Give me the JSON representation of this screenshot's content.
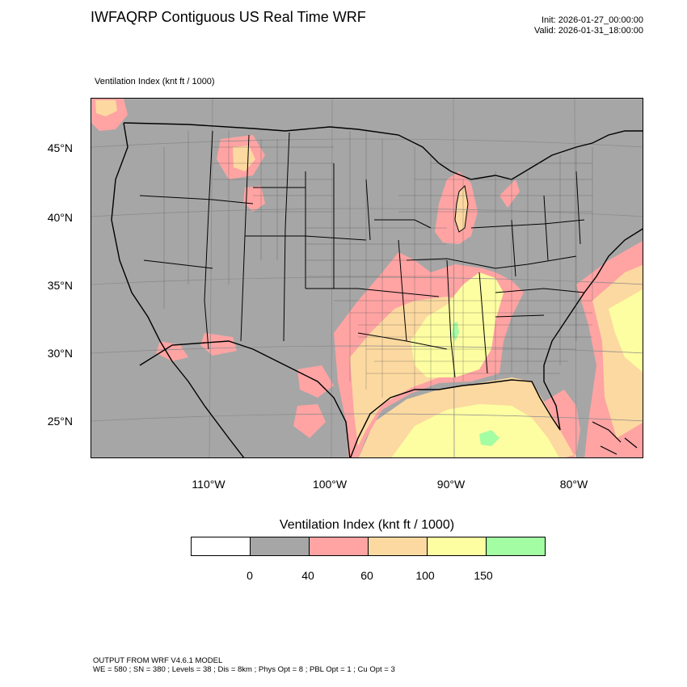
{
  "title": "IWFAQRP Contiguous US Real Time WRF",
  "init_line": "Init: 2026-01-27_00:00:00",
  "valid_line": "Valid: 2026-01-31_18:00:00",
  "field_label": "Ventilation Index   (knt ft / 1000)",
  "lat_labels": [
    "45°N",
    "40°N",
    "35°N",
    "30°N",
    "25°N"
  ],
  "lon_labels": [
    "110°W",
    "100°W",
    "90°W",
    "80°W"
  ],
  "colorbar": {
    "title": "Ventilation Index  (knt ft / 1000)",
    "colors": [
      "#ffffff",
      "#a6a6a6",
      "#ffa3a3",
      "#fcd9a0",
      "#fdfda2",
      "#a3fda3"
    ],
    "ticks": [
      "0",
      "40",
      "60",
      "100",
      "150"
    ]
  },
  "footer": {
    "line1": "OUTPUT FROM WRF V4.6.1 MODEL",
    "line2": "WE = 580 ; SN = 380 ; Levels = 38 ; Dis = 8km ; Phys Opt = 8 ; PBL Opt = 1 ; Cu Opt = 3"
  }
}
